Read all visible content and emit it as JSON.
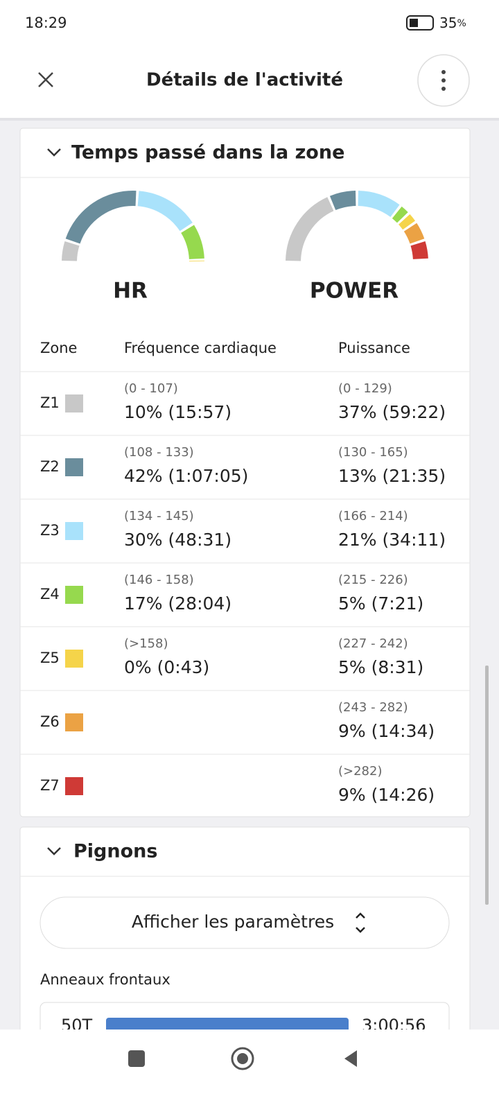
{
  "status_bar": {
    "time": "18:29",
    "battery": "35",
    "battery_unit": "%"
  },
  "header": {
    "title": "Détails de l'activité"
  },
  "zones_card": {
    "title": "Temps passé dans la zone",
    "gauges": [
      {
        "label": "HR",
        "source": "hr"
      },
      {
        "label": "POWER",
        "source": "power"
      }
    ],
    "columns": [
      "Zone",
      "Fréquence cardiaque",
      "Puissance"
    ],
    "zones": [
      {
        "name": "Z1",
        "color": "#c8c8c8",
        "hr": {
          "range": "(0 - 107)",
          "label": "10% (15:57)",
          "value": 10
        },
        "power": {
          "range": "(0 - 129)",
          "label": "37% (59:22)",
          "value": 37
        }
      },
      {
        "name": "Z2",
        "color": "#6a8d9c",
        "hr": {
          "range": "(108 - 133)",
          "label": "42% (1:07:05)",
          "value": 42
        },
        "power": {
          "range": "(130 - 165)",
          "label": "13% (21:35)",
          "value": 13
        }
      },
      {
        "name": "Z3",
        "color": "#a9e2fb",
        "hr": {
          "range": "(134 - 145)",
          "label": "30% (48:31)",
          "value": 30
        },
        "power": {
          "range": "(166 - 214)",
          "label": "21% (34:11)",
          "value": 21
        }
      },
      {
        "name": "Z4",
        "color": "#96d94e",
        "hr": {
          "range": "(146 - 158)",
          "label": "17% (28:04)",
          "value": 17
        },
        "power": {
          "range": "(215 - 226)",
          "label": "5% (7:21)",
          "value": 5
        }
      },
      {
        "name": "Z5",
        "color": "#f5d44a",
        "hr": {
          "range": "(>158)",
          "label": "0% (0:43)",
          "value": 0
        },
        "power": {
          "range": "(227 - 242)",
          "label": "5% (8:31)",
          "value": 5
        }
      },
      {
        "name": "Z6",
        "color": "#eba244",
        "power": {
          "range": "(243 - 282)",
          "label": "9% (14:34)",
          "value": 9
        }
      },
      {
        "name": "Z7",
        "color": "#cf3a36",
        "power": {
          "range": "(>282)",
          "label": "9% (14:26)",
          "value": 9
        }
      }
    ]
  },
  "gears_card": {
    "title": "Pignons",
    "button": "Afficher les paramètres",
    "section": "Anneaux frontaux",
    "rows": [
      {
        "label": "50T",
        "time": "3:00:56"
      }
    ]
  }
}
